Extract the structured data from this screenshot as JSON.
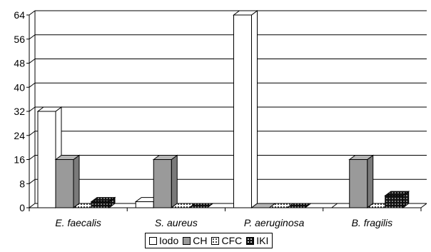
{
  "chart_data": {
    "type": "bar",
    "categories": [
      "E. faecalis",
      "S. aureus",
      "P. aeruginosa",
      "B. fragilis"
    ],
    "series": [
      {
        "name": "Iodo",
        "values": [
          32,
          2,
          64,
          0
        ],
        "color": "#ffffff",
        "pattern": "none"
      },
      {
        "name": "CH",
        "values": [
          16,
          16,
          0,
          16
        ],
        "color": "#9a9a9a",
        "pattern": "none"
      },
      {
        "name": "CFC",
        "values": [
          0,
          0,
          0,
          0
        ],
        "color": "#ffffff",
        "pattern": "dark-dots"
      },
      {
        "name": "IKI",
        "values": [
          2,
          0,
          0,
          4
        ],
        "color": "#111111",
        "pattern": "white-dots"
      }
    ],
    "yticks": [
      0,
      8,
      16,
      24,
      32,
      40,
      48,
      56,
      64
    ],
    "ylim": [
      0,
      64
    ],
    "grid": true,
    "legend_position": "bottom",
    "three_d": true
  }
}
